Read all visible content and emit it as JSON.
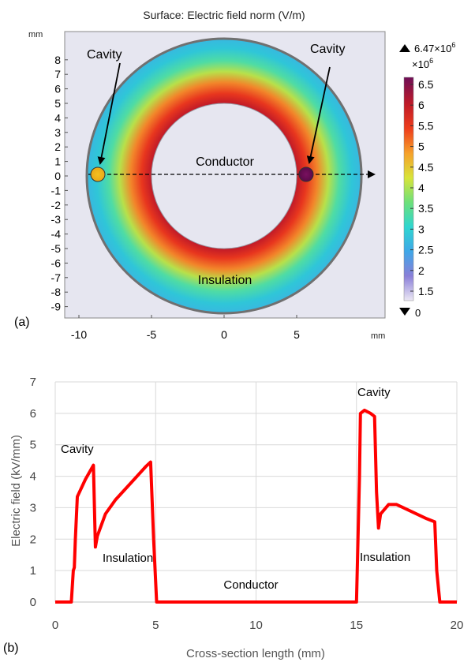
{
  "panel_a": {
    "label": "(a)",
    "title": "Surface: Electric field norm (V/m)",
    "unit_y": "mm",
    "unit_x": "mm",
    "x_ticks": [
      "-10",
      "-5",
      "0",
      "5"
    ],
    "y_ticks": [
      "8",
      "7",
      "6",
      "5",
      "4",
      "3",
      "2",
      "1",
      "0",
      "-1",
      "-2",
      "-3",
      "-4",
      "-5",
      "-6",
      "-7",
      "-8",
      "-9"
    ],
    "colorbar": {
      "max_label": "6.47×10",
      "max_exp": "6",
      "scale_label": "×10",
      "scale_exp": "6",
      "min_label": "0",
      "ticks": [
        "6.5",
        "6",
        "5.5",
        "5",
        "4.5",
        "4",
        "3.5",
        "3",
        "2.5",
        "2",
        "1.5"
      ],
      "colors": [
        "#ece8f4",
        "#8a7fd8",
        "#3fa7e8",
        "#2fd6d0",
        "#6de07a",
        "#d8e43a",
        "#f6a12a",
        "#ee3e1c",
        "#c01a28",
        "#6e0f57"
      ]
    },
    "annotations": {
      "cavity_left": "Cavity",
      "cavity_right": "Cavity",
      "conductor": "Conductor",
      "insulation": "Insulation"
    }
  },
  "panel_b": {
    "label": "(b)",
    "annotations": {
      "cavity_left": "Cavity",
      "insulation_left": "Insulation",
      "conductor": "Conductor",
      "cavity_right": "Cavity",
      "insulation_right": "Insulation"
    }
  },
  "chart_data": {
    "type": "line",
    "title": "",
    "xlabel": "Cross-section length (mm)",
    "ylabel": "Electric field (kV/mm)",
    "xlim": [
      0,
      20
    ],
    "ylim": [
      0,
      7
    ],
    "x_ticks": [
      0,
      5,
      10,
      15,
      20
    ],
    "y_ticks": [
      0,
      1,
      2,
      3,
      4,
      5,
      6,
      7
    ],
    "grid": true,
    "line_color": "#ff0000",
    "series": [
      {
        "x": [
          0,
          0.8,
          0.9,
          0.95,
          1.0,
          1.1,
          1.5,
          1.9,
          2.0,
          2.1,
          2.5,
          3.0,
          3.5,
          4.0,
          4.5,
          4.75,
          4.9,
          5.05,
          10,
          15.0,
          15.15,
          15.2,
          15.4,
          15.7,
          15.9,
          16.0,
          16.1,
          16.2,
          16.6,
          17.0,
          17.5,
          18.0,
          18.5,
          18.9,
          19.0,
          19.15,
          20
        ],
        "y": [
          0,
          0,
          1.0,
          1.1,
          2.0,
          3.35,
          3.9,
          4.35,
          1.75,
          2.1,
          2.8,
          3.25,
          3.6,
          3.95,
          4.3,
          4.45,
          2.0,
          0,
          0,
          0,
          4.0,
          6.0,
          6.1,
          6.0,
          5.9,
          3.5,
          2.35,
          2.8,
          3.1,
          3.1,
          2.95,
          2.8,
          2.65,
          2.55,
          1.0,
          0,
          0
        ]
      }
    ]
  }
}
